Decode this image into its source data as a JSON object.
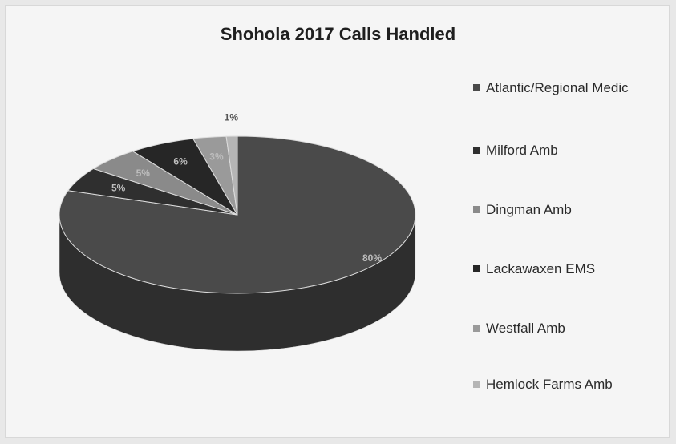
{
  "chart_data": {
    "type": "pie",
    "title": "Shohola 2017 Calls Handled",
    "legend_position": "right",
    "three_d": true,
    "slices": [
      {
        "name": "Atlantic/Regional Medic",
        "value": 80,
        "label": "80%",
        "color": "#4a4a4a"
      },
      {
        "name": "Milford Amb",
        "value": 5,
        "label": "5%",
        "color": "#2f2f2f"
      },
      {
        "name": "Dingman Amb",
        "value": 5,
        "label": "5%",
        "color": "#8a8a8a"
      },
      {
        "name": "Lackawaxen EMS",
        "value": 6,
        "label": "6%",
        "color": "#262626"
      },
      {
        "name": "Westfall Amb",
        "value": 3,
        "label": "3%",
        "color": "#9a9a9a"
      },
      {
        "name": "Hemlock Farms Amb",
        "value": 1,
        "label": "1%",
        "color": "#b5b5b5"
      }
    ]
  }
}
